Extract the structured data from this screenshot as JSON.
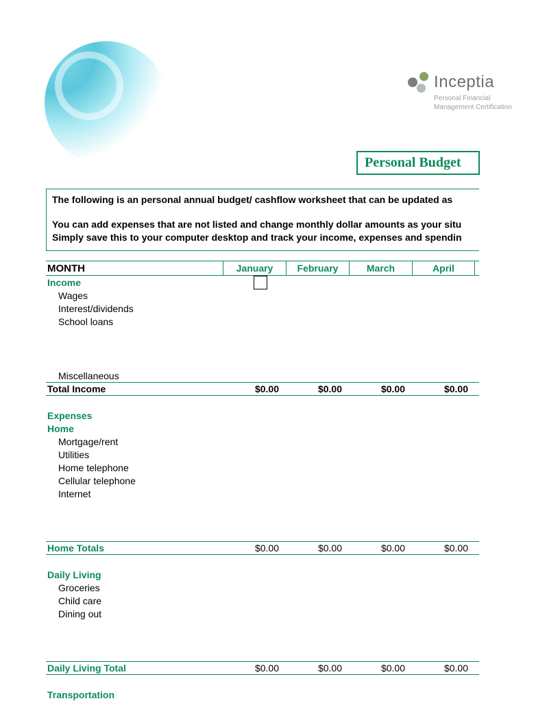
{
  "colors": {
    "accent": "#0d8a5a",
    "logo_gray": "#6a6f74",
    "logo_sub_gray": "#9aa0a6",
    "header_gradient_from": "#7fd8e8",
    "header_gradient_to": "#ffffff"
  },
  "logo": {
    "name": "Inceptia",
    "subtitle_line1": "Personal Financial",
    "subtitle_line2": "Management Certification"
  },
  "title": "Personal Budget",
  "intro": {
    "p1": "The following is an personal annual budget/ cashflow worksheet that can be updated as ",
    "p2a": "You can add expenses that are not listed and change monthly dollar amounts as your situ",
    "p2b": "Simply save this to your computer desktop and track your income, expenses and spendin"
  },
  "table": {
    "month_label": "MONTH",
    "months": [
      "January",
      "February",
      "March",
      "April"
    ],
    "income": {
      "header": "Income",
      "items": [
        "Wages",
        "Interest/dividends",
        "School loans",
        "Miscellaneous"
      ],
      "total_label": "Total Income",
      "totals": [
        "$0.00",
        "$0.00",
        "$0.00",
        "$0.00"
      ]
    },
    "expenses_header": "Expenses",
    "home": {
      "header": "Home",
      "items": [
        "Mortgage/rent",
        "Utilities",
        "Home telephone",
        "Cellular telephone",
        "Internet"
      ],
      "total_label": "Home Totals",
      "totals": [
        "$0.00",
        "$0.00",
        "$0.00",
        "$0.00"
      ]
    },
    "daily": {
      "header": "Daily Living",
      "items": [
        "Groceries",
        "Child care",
        "Dining out"
      ],
      "total_label": "Daily Living Total",
      "totals": [
        "$0.00",
        "$0.00",
        "$0.00",
        "$0.00"
      ]
    },
    "transportation_header": "Transportation"
  }
}
